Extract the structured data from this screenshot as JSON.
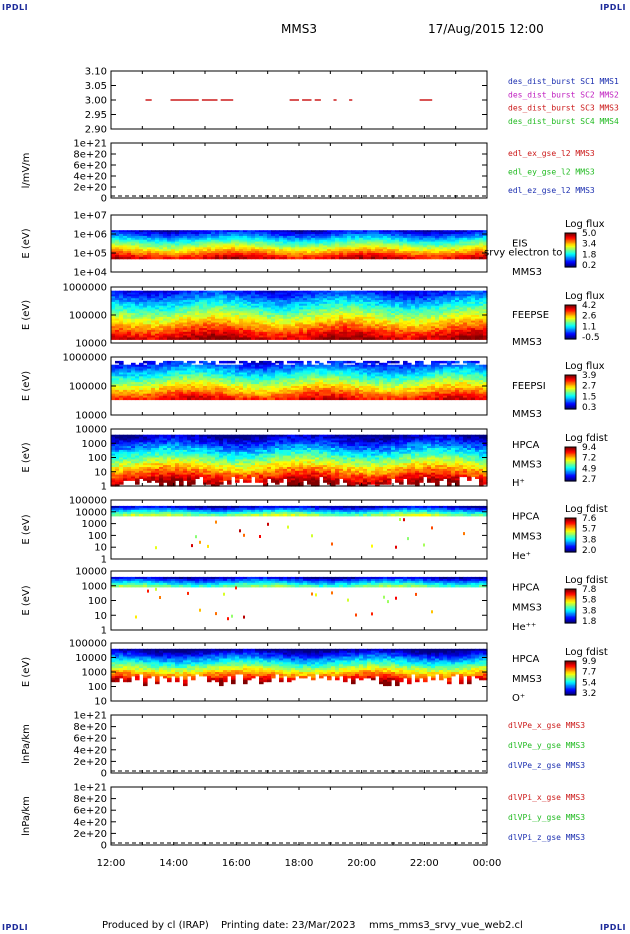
{
  "corner_labels": {
    "tl": "IPDLI",
    "tr": "IPDLI",
    "bl": "IPDLI",
    "br": "IPDLI"
  },
  "header": {
    "title": "MMS3",
    "date": "17/Aug/2015 12:00"
  },
  "footer": {
    "produced": "Produced by cl (IRAP)",
    "printing": "Printing date: 23/Mar/2023",
    "file": "mms_mms3_srvy_vue_web2.cl"
  },
  "x_ticks": [
    "12:00",
    "14:00",
    "16:00",
    "18:00",
    "20:00",
    "22:00",
    "00:00"
  ],
  "chart_data": [
    {
      "type": "line",
      "ytick_labels": [
        "3.10",
        "3.05",
        "3.00",
        "2.95",
        "2.90"
      ],
      "ylim": [
        2.9,
        3.1
      ],
      "legend": [
        {
          "name": "des_dist_burst SC1 MMS1",
          "color": "#1c2fb0"
        },
        {
          "name": "des_dist_burst SC2 MMS2",
          "color": "#c020c0"
        },
        {
          "name": "des_dist_burst SC3 MMS3",
          "color": "#cc1a1a"
        },
        {
          "name": "des_dist_burst SC4 MMS4",
          "color": "#22bb22"
        }
      ],
      "series": [
        {
          "name": "des_dist_burst SC3 MMS3",
          "y": 3.0,
          "segments_hours": [
            [
              13.1,
              13.3
            ],
            [
              13.9,
              14.8
            ],
            [
              14.9,
              15.4
            ],
            [
              15.5,
              15.9
            ],
            [
              17.7,
              18.0
            ],
            [
              18.1,
              18.4
            ],
            [
              18.5,
              18.7
            ],
            [
              19.1,
              19.2
            ],
            [
              19.6,
              19.7
            ],
            [
              21.85,
              22.25
            ]
          ]
        }
      ]
    },
    {
      "type": "line",
      "ylabel": "l/mV/m",
      "ytick_labels": [
        "1e+21",
        "8e+20",
        "6e+20",
        "4e+20",
        "2e+20",
        "0"
      ],
      "legend": [
        {
          "name": "edl_ex_gse_l2 MMS3",
          "color": "#cc1a1a"
        },
        {
          "name": "edl_ey_gse_l2 MMS3",
          "color": "#22bb22"
        },
        {
          "name": "edl_ez_gse_l2 MMS3",
          "color": "#1c2fb0"
        }
      ]
    },
    {
      "type": "heatmap",
      "ylabel": "E (eV)",
      "log_y": true,
      "ytick_labels": [
        "1e+07",
        "1e+06",
        "1e+05",
        "1e+04"
      ],
      "side_labels": [
        "EIS",
        "srvy electron to",
        "MMS3"
      ],
      "colorbar": {
        "title": "Log flux",
        "ticks": [
          "5.0",
          "3.4",
          "1.8",
          "0.2"
        ]
      }
    },
    {
      "type": "heatmap",
      "ylabel": "E (eV)",
      "log_y": true,
      "ytick_labels": [
        "1000000",
        "100000",
        "10000"
      ],
      "side_labels": [
        "FEEPSE",
        "MMS3"
      ],
      "colorbar": {
        "title": "Log flux",
        "ticks": [
          "4.2",
          "2.6",
          "1.1",
          "-0.5"
        ]
      }
    },
    {
      "type": "heatmap",
      "ylabel": "E (eV)",
      "log_y": true,
      "ytick_labels": [
        "1000000",
        "100000",
        "10000"
      ],
      "side_labels": [
        "FEEPSI",
        "MMS3"
      ],
      "colorbar": {
        "title": "Log flux",
        "ticks": [
          "3.9",
          "2.7",
          "1.5",
          "0.3"
        ]
      }
    },
    {
      "type": "heatmap",
      "ylabel": "E (eV)",
      "log_y": true,
      "ytick_labels": [
        "10000",
        "1000",
        "100",
        "10",
        "1"
      ],
      "side_labels": [
        "HPCA",
        "MMS3",
        "H⁺"
      ],
      "colorbar": {
        "title": "Log fdist",
        "ticks": [
          "9.4",
          "7.2",
          "4.9",
          "2.7"
        ]
      }
    },
    {
      "type": "heatmap",
      "ylabel": "E (eV)",
      "log_y": true,
      "ytick_labels": [
        "100000",
        "10000",
        "1000",
        "100",
        "10",
        "1"
      ],
      "side_labels": [
        "HPCA",
        "MMS3",
        "He⁺"
      ],
      "colorbar": {
        "title": "Log fdist",
        "ticks": [
          "7.6",
          "5.7",
          "3.8",
          "2.0"
        ]
      }
    },
    {
      "type": "heatmap",
      "ylabel": "E (eV)",
      "log_y": true,
      "ytick_labels": [
        "10000",
        "1000",
        "100",
        "10",
        "1"
      ],
      "side_labels": [
        "HPCA",
        "MMS3",
        "He⁺⁺"
      ],
      "colorbar": {
        "title": "Log fdist",
        "ticks": [
          "7.8",
          "5.8",
          "3.8",
          "1.8"
        ]
      }
    },
    {
      "type": "heatmap",
      "ylabel": "E (eV)",
      "log_y": true,
      "ytick_labels": [
        "100000",
        "10000",
        "1000",
        "100",
        "10"
      ],
      "side_labels": [
        "HPCA",
        "MMS3",
        "O⁺"
      ],
      "colorbar": {
        "title": "Log fdist",
        "ticks": [
          "9.9",
          "7.7",
          "5.4",
          "3.2"
        ]
      }
    },
    {
      "type": "line",
      "ylabel": "lnPa/km",
      "ytick_labels": [
        "1e+21",
        "8e+20",
        "6e+20",
        "4e+20",
        "2e+20",
        "0"
      ],
      "legend": [
        {
          "name": "dlVPe_x_gse MMS3",
          "color": "#cc1a1a"
        },
        {
          "name": "dlVPe_y_gse MMS3",
          "color": "#22bb22"
        },
        {
          "name": "dlVPe_z_gse MMS3",
          "color": "#1c2fb0"
        }
      ]
    },
    {
      "type": "line",
      "ylabel": "lnPa/km",
      "ytick_labels": [
        "1e+21",
        "8e+20",
        "6e+20",
        "4e+20",
        "2e+20",
        "0"
      ],
      "legend": [
        {
          "name": "dlVPi_x_gse MMS3",
          "color": "#cc1a1a"
        },
        {
          "name": "dlVPi_y_gse MMS3",
          "color": "#22bb22"
        },
        {
          "name": "dlVPi_z_gse MMS3",
          "color": "#1c2fb0"
        }
      ]
    }
  ]
}
